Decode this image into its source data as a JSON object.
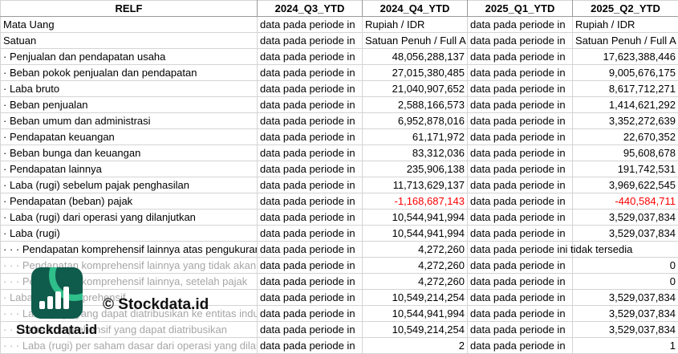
{
  "header": [
    "RELF",
    "2024_Q3_YTD",
    "2024_Q4_YTD",
    "2025_Q1_YTD",
    "2025_Q2_YTD"
  ],
  "rows": [
    {
      "label": "Mata Uang",
      "cells": [
        "data pada periode in",
        "Rupiah / IDR",
        "data pada periode in",
        "Rupiah / IDR"
      ]
    },
    {
      "label": "Satuan",
      "cells": [
        "data pada periode in",
        "Satuan Penuh / Full A",
        "data pada periode in",
        "Satuan Penuh / Full A"
      ]
    },
    {
      "label": "· Penjualan dan pendapatan usaha",
      "cells": [
        "data pada periode in",
        "48,056,288,137",
        "data pada periode in",
        "17,623,388,446"
      ]
    },
    {
      "label": "· Beban pokok penjualan dan pendapatan",
      "cells": [
        "data pada periode in",
        "27,015,380,485",
        "data pada periode in",
        "9,005,676,175"
      ]
    },
    {
      "label": "· Laba bruto",
      "cells": [
        "data pada periode in",
        "21,040,907,652",
        "data pada periode in",
        "8,617,712,271"
      ]
    },
    {
      "label": "· Beban penjualan",
      "cells": [
        "data pada periode in",
        "2,588,166,573",
        "data pada periode in",
        "1,414,621,292"
      ]
    },
    {
      "label": "· Beban umum dan administrasi",
      "cells": [
        "data pada periode in",
        "6,952,878,016",
        "data pada periode in",
        "3,352,272,639"
      ]
    },
    {
      "label": "· Pendapatan keuangan",
      "cells": [
        "data pada periode in",
        "61,171,972",
        "data pada periode in",
        "22,670,352"
      ]
    },
    {
      "label": "· Beban bunga dan keuangan",
      "cells": [
        "data pada periode in",
        "83,312,036",
        "data pada periode in",
        "95,608,678"
      ]
    },
    {
      "label": "· Pendapatan lainnya",
      "cells": [
        "data pada periode in",
        "235,906,138",
        "data pada periode in",
        "191,742,531"
      ]
    },
    {
      "label": "· Laba (rugi) sebelum pajak penghasilan",
      "cells": [
        "data pada periode in",
        "11,713,629,137",
        "data pada periode in",
        "3,969,622,545"
      ]
    },
    {
      "label": "· Pendapatan (beban) pajak",
      "cells": [
        "data pada periode in",
        "-1,168,687,143",
        "data pada periode in",
        "-440,584,711"
      ]
    },
    {
      "label": "· Laba (rugi) dari operasi yang dilanjutkan",
      "cells": [
        "data pada periode in",
        "10,544,941,994",
        "data pada periode in",
        "3,529,037,834"
      ]
    },
    {
      "label": "· Laba (rugi)",
      "cells": [
        "data pada periode in",
        "10,544,941,994",
        "data pada periode in",
        "3,529,037,834"
      ]
    },
    {
      "label": "· · · Pendapatan komprehensif lainnya atas pengukuran",
      "cells": [
        "data pada periode in",
        "4,272,260",
        "data pada periode ini tidak tersedia",
        ""
      ]
    },
    {
      "label": "· · · Pendapatan komprehensif lainnya yang tidak akan",
      "cells": [
        "data pada periode in",
        "4,272,260",
        "data pada periode in",
        "0"
      ]
    },
    {
      "label": "· · · Pendapatan komprehensif lainnya, setelah pajak",
      "cells": [
        "data pada periode in",
        "4,272,260",
        "data pada periode in",
        "0"
      ]
    },
    {
      "label": "· Laba (rugi) komprehensif",
      "cells": [
        "data pada periode in",
        "10,549,214,254",
        "data pada periode in",
        "3,529,037,834"
      ]
    },
    {
      "label": "· · · Laba (rugi) yang dapat diatribusikan ke entitas induk",
      "cells": [
        "data pada periode in",
        "10,544,941,994",
        "data pada periode in",
        "3,529,037,834"
      ]
    },
    {
      "label": "· · · Laba komprehensif yang dapat diatribusikan",
      "cells": [
        "data pada periode in",
        "10,549,214,254",
        "data pada periode in",
        "3,529,037,834"
      ]
    },
    {
      "label": "· · · Laba (rugi) per saham dasar dari operasi yang dilanjutkan",
      "cells": [
        "data pada periode in",
        "2",
        "data pada periode in",
        "1"
      ]
    }
  ],
  "watermark": {
    "brand": "© Stockdata.id",
    "logo_text": "Stockdata.id"
  },
  "colors": {
    "negative": "#ff0000",
    "logo_bg": "#0f5b4c",
    "logo_accent": "#2fbf8a"
  }
}
